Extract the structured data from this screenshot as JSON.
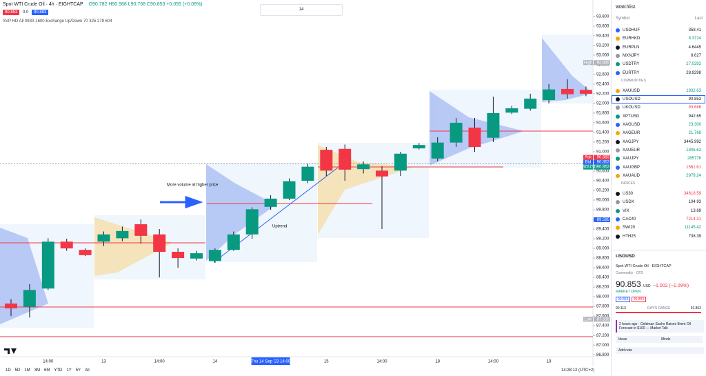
{
  "header": {
    "title": "Spot WTI Crude Oil · 4h · EIGHTCAP",
    "ohlc": "O90.782 H90.968 L90.768 C90.853 +0.055 (+0.06%)",
    "bid": "90.853",
    "spread": "0.0",
    "ask": "90.883",
    "indicator": "SVP HD All 0930-1600 Exchange Up/Down 70 325 279 604"
  },
  "toolbar": {
    "font_size": "14"
  },
  "chart_data": {
    "type": "candlestick",
    "categories": [
      null,
      null,
      "14:00",
      null,
      null,
      "13",
      null,
      null,
      "14:00",
      null,
      null,
      "14",
      null,
      null,
      "Thu 14 Sep '23  14:00",
      null,
      null,
      "15",
      null,
      null,
      "14:00",
      null,
      null,
      "18",
      null,
      null,
      "14:00",
      null,
      null,
      "19",
      null,
      null
    ],
    "crosshair": 14,
    "open": [
      87.86,
      87.79,
      88.17,
      89.14,
      88.97,
      89.14,
      89.21,
      89.5,
      89.29,
      88.93,
      88.79,
      88.74,
      88.97,
      89.29,
      89.86,
      90.03,
      90.4,
      91.04,
      91.06,
      90.64,
      90.61,
      90.61,
      91.07,
      90.86,
      91.19,
      91.5,
      91.29,
      91.81,
      91.89,
      92.07,
      92.3,
      92.28
    ],
    "high": [
      87.95,
      88.26,
      89.21,
      89.2,
      89.0,
      89.35,
      89.45,
      89.6,
      89.4,
      89.0,
      88.95,
      89.0,
      89.35,
      89.85,
      90.1,
      90.45,
      90.75,
      91.1,
      91.15,
      90.8,
      90.7,
      91.0,
      91.18,
      91.3,
      91.7,
      91.7,
      92.14,
      91.95,
      92.2,
      92.4,
      92.5,
      92.35
    ],
    "low": [
      87.6,
      87.57,
      88.14,
      88.95,
      88.84,
      89.05,
      89.15,
      89.1,
      88.4,
      88.6,
      88.75,
      88.7,
      88.95,
      89.2,
      89.8,
      90.0,
      90.35,
      90.5,
      90.4,
      90.55,
      89.4,
      90.5,
      91.05,
      90.8,
      91.1,
      91.0,
      91.2,
      91.78,
      91.85,
      92.0,
      92.1,
      92.15
    ],
    "close": [
      87.76,
      88.14,
      89.14,
      89.0,
      88.86,
      89.29,
      89.36,
      89.26,
      88.93,
      88.8,
      88.9,
      88.97,
      89.29,
      89.81,
      90.03,
      90.39,
      90.69,
      90.61,
      90.63,
      90.74,
      90.49,
      90.96,
      91.14,
      91.19,
      91.6,
      91.1,
      91.8,
      91.9,
      92.1,
      92.29,
      92.19,
      92.2
    ],
    "up_color": "#089981",
    "down_color": "#f23645",
    "ylim": [
      86.76,
      94.14
    ],
    "yticks": [
      {
        "value": 86.8,
        "label": "86.800"
      },
      {
        "value": 87.0,
        "label": "87.000"
      },
      {
        "value": 87.2,
        "label": "87.200"
      },
      {
        "value": 87.4,
        "label": "87.400"
      },
      {
        "value": 87.6,
        "label": "87.600"
      },
      {
        "value": 87.8,
        "label": "87.800"
      },
      {
        "value": 88.0,
        "label": "88.000"
      },
      {
        "value": 88.2,
        "label": "88.200"
      },
      {
        "value": 88.4,
        "label": "88.400"
      },
      {
        "value": 88.6,
        "label": "88.600"
      },
      {
        "value": 88.8,
        "label": "88.800"
      },
      {
        "value": 89.0,
        "label": "89.000"
      },
      {
        "value": 89.2,
        "label": "89.200"
      },
      {
        "value": 89.4,
        "label": "89.400"
      },
      {
        "value": 89.6,
        "label": "89.600"
      },
      {
        "value": 89.8,
        "label": "89.800"
      },
      {
        "value": 90.0,
        "label": "90.000"
      },
      {
        "value": 90.2,
        "label": "90.200"
      },
      {
        "value": 90.4,
        "label": "90.400"
      },
      {
        "value": 90.6,
        "label": "90.600"
      },
      {
        "value": 90.8,
        "label": "90.800"
      },
      {
        "value": 91.0,
        "label": "91.000"
      },
      {
        "value": 91.2,
        "label": "91.200"
      },
      {
        "value": 91.4,
        "label": "91.400"
      },
      {
        "value": 91.6,
        "label": "91.600"
      },
      {
        "value": 91.8,
        "label": "91.800"
      },
      {
        "value": 92.0,
        "label": "92.000"
      },
      {
        "value": 92.2,
        "label": "92.200"
      },
      {
        "value": 92.4,
        "label": "92.400"
      },
      {
        "value": 92.6,
        "label": "92.600"
      },
      {
        "value": 92.8,
        "label": "92.800"
      },
      {
        "value": 93.0,
        "label": "93.000"
      },
      {
        "value": 93.2,
        "label": "93.200"
      },
      {
        "value": 93.4,
        "label": "93.400"
      },
      {
        "value": 93.6,
        "label": "93.600"
      },
      {
        "value": 93.8,
        "label": "93.800"
      }
    ],
    "price_labels": [
      {
        "name": "High",
        "value": 92.845,
        "color": "#b2b5be"
      },
      {
        "name": "Ask",
        "value": 90.883,
        "color": "#f23645"
      },
      {
        "name": "Bid",
        "value": 90.853,
        "color": "#2962ff"
      },
      {
        "name": "USOUSD",
        "value": 90.853,
        "color": "#089981"
      },
      {
        "value": 89.595,
        "color": "#2962ff"
      },
      {
        "name": "Low",
        "value": 87.535,
        "color": "#b2b5be"
      }
    ],
    "annotations": [
      "More volume at higher price",
      "Uptrend"
    ]
  },
  "bottom_bar": {
    "timeframes": [
      "1D",
      "5D",
      "1M",
      "3M",
      "6M",
      "YTD",
      "1Y",
      "5Y",
      "All"
    ],
    "clock": "14:28:12 (UTC+2)"
  },
  "watchlist": {
    "title": "Watchlist",
    "columns": [
      "Symbol",
      "Last"
    ],
    "sections": [
      {
        "rows": [
          {
            "symbol": "USDHUF",
            "last": "358.41",
            "color": "#131722"
          },
          {
            "symbol": "EURHKD",
            "last": "8.3724",
            "color": "#089981"
          },
          {
            "symbol": "EURPLN",
            "last": "4.6445",
            "color": "#131722"
          },
          {
            "symbol": "MXNJPY",
            "last": "8.627",
            "color": "#131722"
          },
          {
            "symbol": "USDTRY",
            "last": "27.0292",
            "color": "#089981"
          },
          {
            "symbol": "EURTRY",
            "last": "28.9298",
            "color": "#131722"
          }
        ]
      },
      {
        "name": "COMMODITIES",
        "rows": [
          {
            "symbol": "XAUUSD",
            "last": "1932.63",
            "color": "#089981"
          },
          {
            "symbol": "USOUSD",
            "last": "90.853",
            "color": "#131722",
            "selected": true
          },
          {
            "symbol": "UKOUSD",
            "last": "93.686",
            "color": "#f23645"
          },
          {
            "symbol": "XPTUSD",
            "last": "942.65",
            "color": "#131722"
          },
          {
            "symbol": "XAGUSD",
            "last": "23.300",
            "color": "#089981"
          },
          {
            "symbol": "XAGEUR",
            "last": "21.768",
            "color": "#089981"
          },
          {
            "symbol": "XAGJPY",
            "last": "3445.992",
            "color": "#131722"
          },
          {
            "symbol": "XAUEUR",
            "last": "1805.62",
            "color": "#089981"
          },
          {
            "symbol": "XAUJPY",
            "last": "285776",
            "color": "#089981"
          },
          {
            "symbol": "XAUGBP",
            "last": "1561.61",
            "color": "#f23645"
          },
          {
            "symbol": "XAUAUD",
            "last": "2979.24",
            "color": "#089981"
          }
        ]
      },
      {
        "name": "INDICES",
        "rows": [
          {
            "symbol": "US30",
            "last": "34618.59",
            "color": "#f23645"
          },
          {
            "symbol": "USDX",
            "last": "104.93",
            "color": "#131722"
          },
          {
            "symbol": "VIX",
            "last": "13.69",
            "color": "#131722"
          },
          {
            "symbol": "CAC40",
            "last": "7214.31",
            "color": "#f23645"
          },
          {
            "symbol": "SWI20",
            "last": "11145.42",
            "color": "#089981"
          },
          {
            "symbol": "HTH25",
            "last": "738.39",
            "color": "#131722"
          }
        ]
      }
    ]
  },
  "details": {
    "symbol": "USOUSD",
    "description": "Spot WTI Crude Oil",
    "exchange": "EIGHTCAP",
    "category": "Commodity · CFD",
    "price": "90.853",
    "currency": "USD",
    "change": "−1.002 (−1.09%)",
    "status": "MARKET OPEN",
    "bid": "90.853",
    "ask": "90.883",
    "range_low": "90.113",
    "range_label": "DAY'S RANGE",
    "range_high": "91.863",
    "news": "2 hours ago · Goldman Sachs Raises Brent Oil Forecast to $100 — Market Talk",
    "ideas": "Ideas",
    "minds": "Minds",
    "add_note": "Add note"
  }
}
